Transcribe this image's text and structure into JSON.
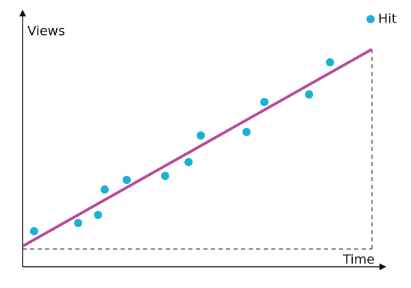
{
  "chart_data": {
    "type": "scatter",
    "x_label": "Time",
    "y_label": "Views",
    "series": [
      {
        "name": "Hit",
        "color": "#1ab0d8",
        "x": [
          3.3,
          15.9,
          21.6,
          23.5,
          29.8,
          40.8,
          47.5,
          51.0,
          64.1,
          69.2,
          82.0,
          88.0
        ],
        "values": [
          8.9,
          13.0,
          17.1,
          29.8,
          34.6,
          36.6,
          43.5,
          56.8,
          58.6,
          73.6,
          77.4,
          93.5
        ]
      }
    ],
    "trend": {
      "color": "#b5489b",
      "x": [
        0,
        100
      ],
      "values": [
        1.4,
        100
      ]
    },
    "xlim": [
      0,
      100
    ],
    "ylim": [
      0,
      100
    ],
    "legend": "top-right"
  }
}
